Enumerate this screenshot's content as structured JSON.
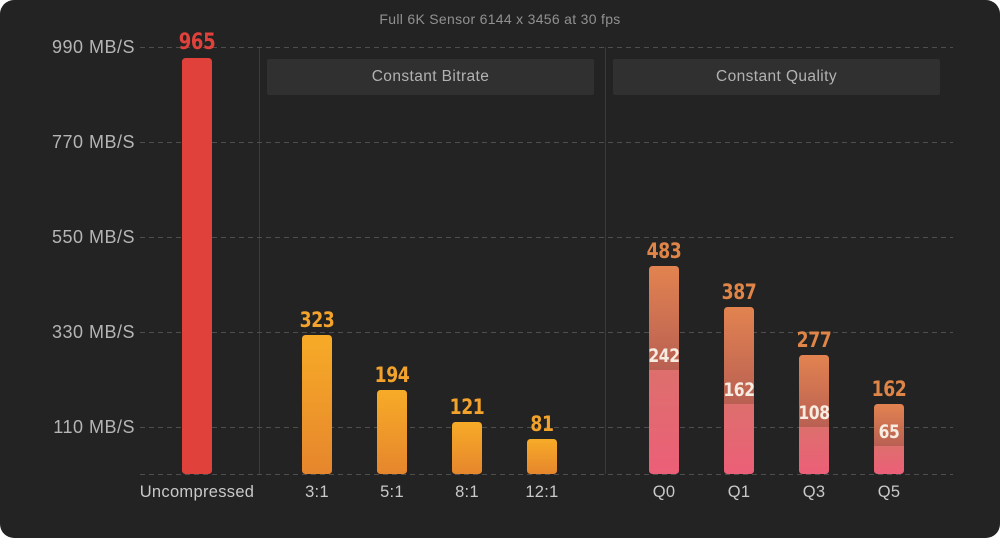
{
  "title": "Full 6K Sensor 6144 x 3456 at 30 fps",
  "colors": {
    "card_bg": "#232323",
    "title_text": "#919191",
    "axis_text": "#b5b5b5",
    "xlabel_text": "#c9c9c9",
    "grid_line": "#565656",
    "divider": "#3b3b3b",
    "header_bg": "#303030",
    "header_text": "#b2b2b2",
    "red_bar": "#e0423b",
    "red_label": "#e0413a",
    "cb_top": "#f7ab27",
    "cb_bottom": "#e6862d",
    "cb_label": "#f3a32c",
    "cq_top": "#e28350",
    "cq_upper_bottom": "#b96053",
    "cq_lower_top": "#dd6f6d",
    "cq_lower_bottom": "#ec5f78",
    "cq_label": "#e08548",
    "inner_label": "#f6ece1"
  },
  "chart_data": {
    "type": "bar",
    "title": "Full 6K Sensor 6144 x 3456 at 30 fps",
    "unit": "MB/S",
    "xlabel": "",
    "ylabel": "",
    "ylim": [
      0,
      1035
    ],
    "grid": "horizontal dashed",
    "legend": "none",
    "y_ticks": [
      "990 MB/S",
      "770 MB/S",
      "550 MB/S",
      "330 MB/S",
      "110 MB/S"
    ],
    "y_tick_values": [
      990,
      770,
      550,
      330,
      110
    ],
    "sections": [
      {
        "label": "",
        "style": "red",
        "bars": [
          {
            "category": "Uncompressed",
            "value": 965
          }
        ]
      },
      {
        "label": "Constant Bitrate",
        "style": "orange",
        "bars": [
          {
            "category": "3:1",
            "value": 323
          },
          {
            "category": "5:1",
            "value": 194
          },
          {
            "category": "8:1",
            "value": 121
          },
          {
            "category": "12:1",
            "value": 81
          }
        ]
      },
      {
        "label": "Constant Quality",
        "style": "quality",
        "bars": [
          {
            "category": "Q0",
            "value": 483,
            "inner_value": 242
          },
          {
            "category": "Q1",
            "value": 387,
            "inner_value": 162
          },
          {
            "category": "Q3",
            "value": 277,
            "inner_value": 108
          },
          {
            "category": "Q5",
            "value": 162,
            "inner_value": 65
          }
        ]
      }
    ]
  }
}
